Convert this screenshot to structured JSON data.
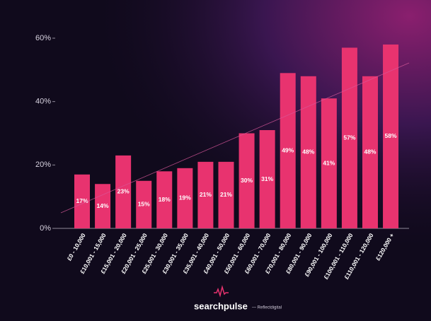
{
  "chart_data": {
    "type": "bar",
    "categories": [
      "£0 - 10,000",
      "£10,001 - 15,000",
      "£15,001 - 20,000",
      "£20,001 - 25,000",
      "£25,001 - 30,000",
      "£30,001 - 35,000",
      "£35,001 - 40,000",
      "£40,001 - 50,000",
      "£50,001 - 60,000",
      "£60,001 - 70,000",
      "£70,001 - 80,000",
      "£80,001 - 90,000",
      "£90,001 - 100,000",
      "£100,001 - 110,000",
      "£110,001 - 120,000",
      "£120,000 +"
    ],
    "values": [
      17,
      14,
      23,
      15,
      18,
      19,
      21,
      21,
      30,
      31,
      49,
      48,
      41,
      57,
      48,
      58
    ],
    "value_labels": [
      "17%",
      "14%",
      "23%",
      "15%",
      "18%",
      "19%",
      "21%",
      "21%",
      "30%",
      "31%",
      "49%",
      "48%",
      "41%",
      "57%",
      "48%",
      "58%"
    ],
    "color": "#e8336f",
    "ylim": [
      0,
      60
    ],
    "yticks": [
      {
        "value": 0,
        "label": "0%"
      },
      {
        "value": 20,
        "label": "20%"
      },
      {
        "value": 40,
        "label": "40%"
      },
      {
        "value": 60,
        "label": "60%"
      }
    ],
    "grid": false
  },
  "footer": {
    "brand": "searchpulse",
    "by": "— Reflectdigital"
  }
}
